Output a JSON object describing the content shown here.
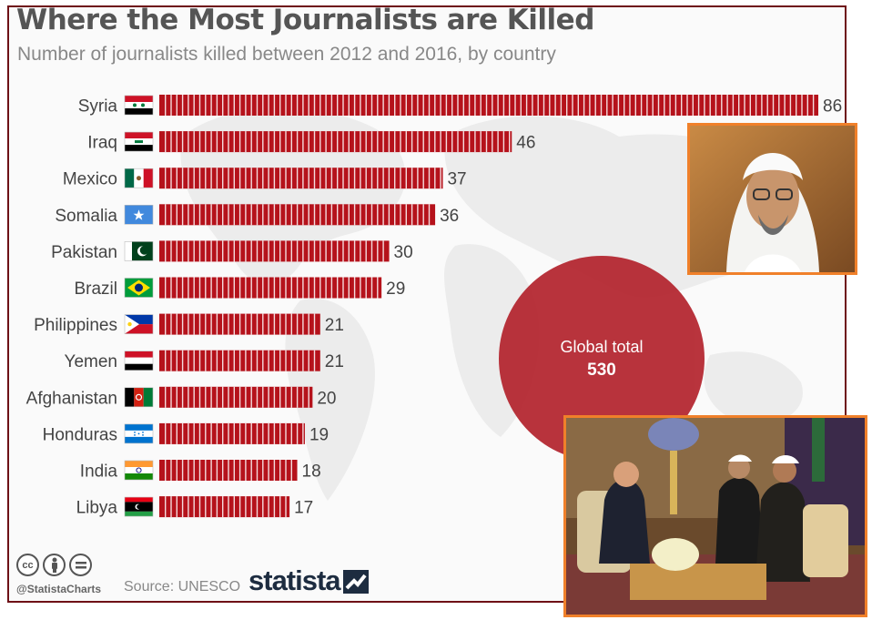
{
  "title": "Where the Most Journalists are Killed",
  "subtitle": "Number of journalists killed between 2012 and 2016, by country",
  "chart_data": {
    "type": "bar",
    "orientation": "horizontal",
    "title": "Where the Most Journalists are Killed",
    "subtitle": "Number of journalists killed between 2012 and 2016, by country",
    "categories": [
      "Syria",
      "Iraq",
      "Mexico",
      "Somalia",
      "Pakistan",
      "Brazil",
      "Philippines",
      "Yemen",
      "Afghanistan",
      "Honduras",
      "India",
      "Libya"
    ],
    "values": [
      86,
      46,
      37,
      36,
      30,
      29,
      21,
      21,
      20,
      19,
      18,
      17
    ],
    "xlim": [
      0,
      86
    ],
    "xlabel": "",
    "ylabel": "",
    "bar_color": "#b5121b",
    "flags": [
      "flag-syria-icon",
      "flag-iraq-icon",
      "flag-mexico-icon",
      "flag-somalia-icon",
      "flag-pakistan-icon",
      "flag-brazil-icon",
      "flag-philippines-icon",
      "flag-yemen-icon",
      "flag-afghanistan-icon",
      "flag-honduras-icon",
      "flag-india-icon",
      "flag-libya-icon"
    ]
  },
  "global_total": {
    "label": "Global total",
    "value": "530"
  },
  "footer": {
    "handle": "@StatistaCharts",
    "source": "Source: UNESCO",
    "brand": "statista",
    "license_icons": [
      "cc-icon",
      "attribution-icon",
      "no-derivatives-icon"
    ]
  },
  "colors": {
    "frame": "#6e1016",
    "bar": "#b5121b",
    "bubble": "#b4252e",
    "photo_border": "#f0802a"
  }
}
